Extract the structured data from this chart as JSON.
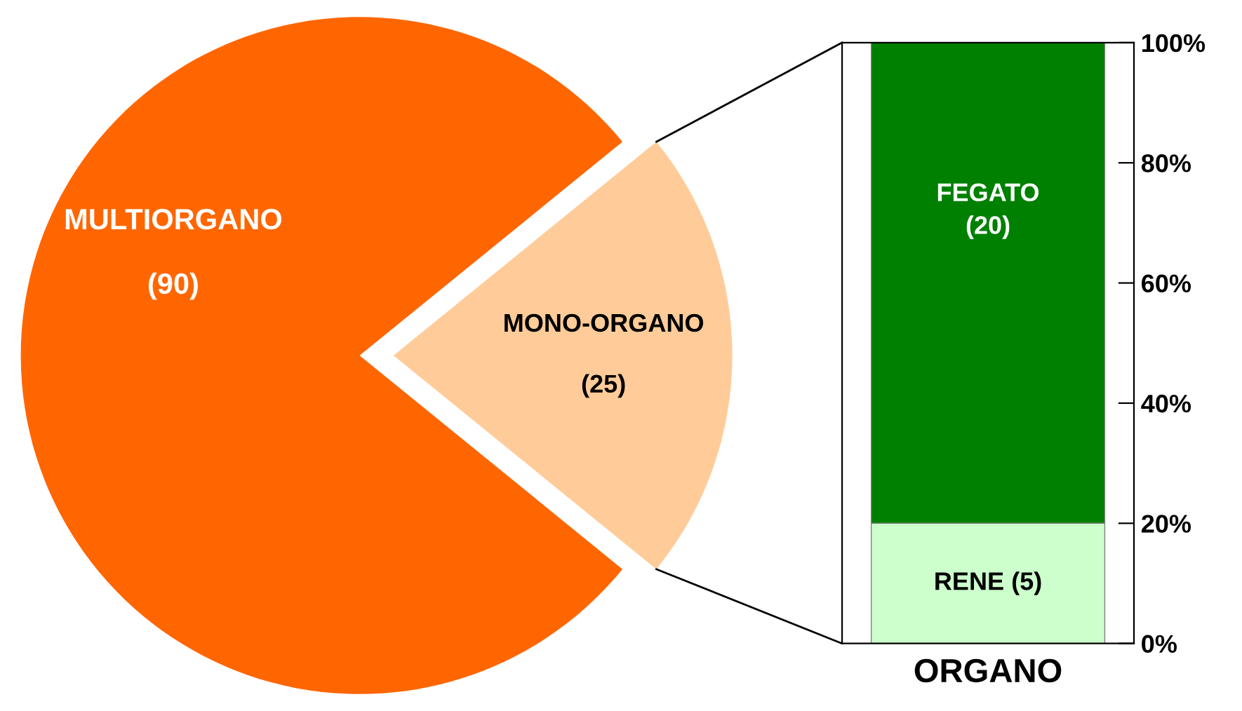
{
  "chart_data": [
    {
      "type": "pie",
      "categories": [
        "MULTIORGANO",
        "MONO-ORGANO"
      ],
      "values": [
        90,
        25
      ],
      "colors": [
        "#ff6600",
        "#ffcc99"
      ],
      "value_labels": [
        "(90)",
        "(25)"
      ]
    },
    {
      "type": "bar",
      "stacked": true,
      "categories": [
        null
      ],
      "xlabel": "ORGANO",
      "ylim": [
        0,
        100
      ],
      "yticks": [
        {
          "value": 0,
          "label": "0%"
        },
        {
          "value": 20,
          "label": "20%"
        },
        {
          "value": 40,
          "label": "40%"
        },
        {
          "value": 60,
          "label": "60%"
        },
        {
          "value": 80,
          "label": "80%"
        },
        {
          "value": 100,
          "label": "100%"
        }
      ],
      "series": [
        {
          "color": "#ccffcc",
          "values": [
            20
          ]
        },
        {
          "color": "#008000",
          "values": [
            80
          ]
        }
      ],
      "annotations": [
        "RENE (5)",
        "FEGATO\n(20)"
      ],
      "grid": false,
      "legend": false
    }
  ]
}
